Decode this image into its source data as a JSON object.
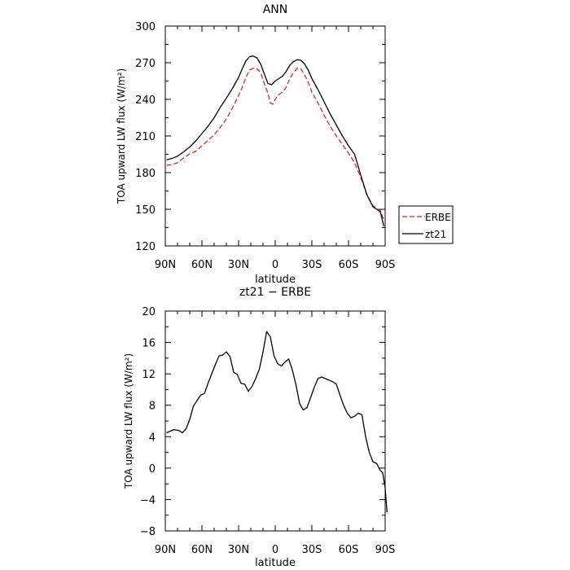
{
  "chart_data": [
    {
      "type": "line",
      "title": "ANN",
      "xlabel": "latitude",
      "ylabel": "TOA upward LW flux (W/m²)",
      "xlim": [
        90,
        -90
      ],
      "ylim": [
        120,
        300
      ],
      "x_ticks": [
        90,
        60,
        30,
        0,
        -30,
        -60,
        -90
      ],
      "x_tick_labels": [
        "90N",
        "60N",
        "30N",
        "0",
        "30S",
        "60S",
        "90S"
      ],
      "y_ticks": [
        120,
        150,
        180,
        210,
        240,
        270,
        300
      ],
      "y_tick_labels": [
        "120",
        "150",
        "180",
        "210",
        "240",
        "270",
        "300"
      ],
      "legend": "right",
      "series": [
        {
          "name": "ERBE",
          "color": "#e8251e",
          "dash": "dashed",
          "points": [
            [
              89,
              186
            ],
            [
              85,
              186.5
            ],
            [
              80,
              188
            ],
            [
              75,
              192
            ],
            [
              70,
              195.5
            ],
            [
              65,
              197.5
            ],
            [
              60,
              202
            ],
            [
              55,
              206.5
            ],
            [
              50,
              211
            ],
            [
              45,
              217
            ],
            [
              40,
              224
            ],
            [
              35,
              233
            ],
            [
              30,
              243
            ],
            [
              27,
              250
            ],
            [
              24,
              258
            ],
            [
              21,
              264
            ],
            [
              18,
              265.5
            ],
            [
              15,
              265
            ],
            [
              12,
              262
            ],
            [
              9,
              253
            ],
            [
              6,
              245
            ],
            [
              4,
              237
            ],
            [
              2,
              236
            ],
            [
              0,
              240
            ],
            [
              -3,
              244
            ],
            [
              -6,
              246
            ],
            [
              -9,
              250
            ],
            [
              -12,
              257
            ],
            [
              -15,
              262
            ],
            [
              -18,
              265.5
            ],
            [
              -21,
              265
            ],
            [
              -24,
              260
            ],
            [
              -27,
              254
            ],
            [
              -30,
              246
            ],
            [
              -35,
              237
            ],
            [
              -40,
              227
            ],
            [
              -45,
              218
            ],
            [
              -50,
              210
            ],
            [
              -55,
              203
            ],
            [
              -60,
              196
            ],
            [
              -65,
              188
            ],
            [
              -70,
              176
            ],
            [
              -75,
              162
            ],
            [
              -80,
              153
            ],
            [
              -83,
              151
            ],
            [
              -86,
              149
            ],
            [
              -89,
              141
            ]
          ]
        },
        {
          "name": "zt21",
          "color": "#000000",
          "dash": "solid",
          "points": [
            [
              89,
              190.5
            ],
            [
              85,
              191.5
            ],
            [
              80,
              193.5
            ],
            [
              75,
              197
            ],
            [
              70,
              201
            ],
            [
              65,
              206
            ],
            [
              60,
              212
            ],
            [
              55,
              218
            ],
            [
              50,
              225
            ],
            [
              45,
              233.5
            ],
            [
              40,
              241
            ],
            [
              35,
              249
            ],
            [
              30,
              258
            ],
            [
              27,
              265
            ],
            [
              24,
              271.5
            ],
            [
              21,
              275
            ],
            [
              18,
              275.5
            ],
            [
              15,
              274
            ],
            [
              12,
              269
            ],
            [
              9,
              261
            ],
            [
              6,
              253
            ],
            [
              3,
              252
            ],
            [
              0,
              255
            ],
            [
              -3,
              257
            ],
            [
              -6,
              259
            ],
            [
              -9,
              263
            ],
            [
              -12,
              268
            ],
            [
              -15,
              271
            ],
            [
              -18,
              272.5
            ],
            [
              -21,
              272
            ],
            [
              -24,
              269
            ],
            [
              -27,
              264
            ],
            [
              -30,
              257
            ],
            [
              -35,
              248
            ],
            [
              -40,
              238
            ],
            [
              -45,
              228
            ],
            [
              -50,
              219
            ],
            [
              -55,
              210
            ],
            [
              -60,
              202
            ],
            [
              -65,
              195
            ],
            [
              -70,
              178
            ],
            [
              -75,
              162
            ],
            [
              -80,
              152
            ],
            [
              -83,
              150
            ],
            [
              -86,
              148
            ],
            [
              -89,
              136
            ]
          ]
        }
      ]
    },
    {
      "type": "line",
      "title": "zt21 − ERBE",
      "xlabel": "latitude",
      "ylabel": "TOA upward LW flux (W/m²)",
      "xlim": [
        90,
        -90
      ],
      "ylim": [
        -8,
        20
      ],
      "x_ticks": [
        90,
        60,
        30,
        0,
        -30,
        -60,
        -90
      ],
      "x_tick_labels": [
        "90N",
        "60N",
        "30N",
        "0",
        "30S",
        "60S",
        "90S"
      ],
      "y_ticks": [
        -8,
        -4,
        0,
        4,
        8,
        12,
        16,
        20
      ],
      "y_tick_labels": [
        "−8",
        "−4",
        "0",
        "4",
        "8",
        "12",
        "16",
        "20"
      ],
      "series": [
        {
          "color": "#000000",
          "dash": "solid",
          "points": [
            [
              89,
              4.5
            ],
            [
              86,
              4.7
            ],
            [
              83,
              4.9
            ],
            [
              79,
              4.8
            ],
            [
              76,
              4.5
            ],
            [
              73,
              5.0
            ],
            [
              70,
              6.2
            ],
            [
              67,
              7.9
            ],
            [
              64,
              8.6
            ],
            [
              61,
              9.3
            ],
            [
              58,
              9.5
            ],
            [
              55,
              10.8
            ],
            [
              52,
              12.0
            ],
            [
              49,
              13.2
            ],
            [
              46,
              14.3
            ],
            [
              43,
              14.4
            ],
            [
              40,
              14.8
            ],
            [
              37,
              14.2
            ],
            [
              34,
              12.2
            ],
            [
              31,
              11.9
            ],
            [
              28,
              10.8
            ],
            [
              25,
              10.7
            ],
            [
              22,
              9.8
            ],
            [
              19,
              10.4
            ],
            [
              16,
              11.4
            ],
            [
              13,
              12.6
            ],
            [
              10,
              14.8
            ],
            [
              7,
              17.4
            ],
            [
              4,
              16.7
            ],
            [
              1,
              14.3
            ],
            [
              -2,
              13.3
            ],
            [
              -5,
              13.0
            ],
            [
              -8,
              13.5
            ],
            [
              -11,
              13.9
            ],
            [
              -14,
              12.5
            ],
            [
              -17,
              10.6
            ],
            [
              -20,
              8.2
            ],
            [
              -23,
              7.4
            ],
            [
              -26,
              7.7
            ],
            [
              -29,
              9.0
            ],
            [
              -32,
              10.3
            ],
            [
              -35,
              11.4
            ],
            [
              -38,
              11.6
            ],
            [
              -41,
              11.4
            ],
            [
              -44,
              11.2
            ],
            [
              -47,
              11.0
            ],
            [
              -50,
              10.7
            ],
            [
              -53,
              9.3
            ],
            [
              -56,
              8.0
            ],
            [
              -59,
              7.0
            ],
            [
              -62,
              6.4
            ],
            [
              -65,
              6.6
            ],
            [
              -68,
              7.0
            ],
            [
              -71,
              6.8
            ],
            [
              -74,
              4.0
            ],
            [
              -77,
              2.0
            ],
            [
              -80,
              0.8
            ],
            [
              -83,
              0.6
            ],
            [
              -86,
              -0.3
            ],
            [
              -88,
              -0.6
            ],
            [
              -90,
              -2.5
            ],
            [
              -91.5,
              -5.6
            ]
          ]
        }
      ]
    }
  ]
}
